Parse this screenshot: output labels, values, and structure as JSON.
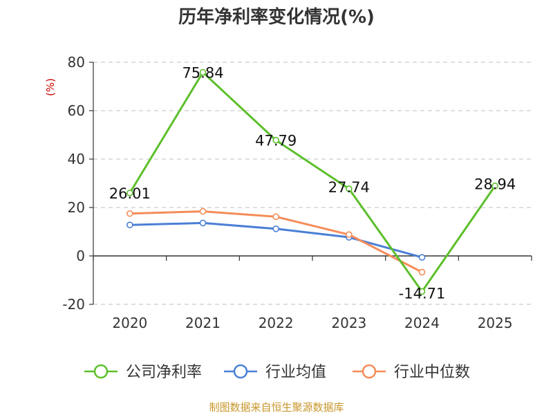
{
  "chart_data": {
    "type": "line",
    "title": "历年净利率变化情况(%)",
    "ylabel": "(%)",
    "xlabel": "",
    "categories": [
      "2020",
      "2021",
      "2022",
      "2023",
      "2024",
      "2025"
    ],
    "ylim": [
      -20,
      80
    ],
    "yticks": [
      80,
      60,
      40,
      20,
      0,
      -20
    ],
    "grid": true,
    "legend": "bottom",
    "series": [
      {
        "name": "公司净利率",
        "color": "#5cbf2a",
        "values": [
          26.01,
          75.84,
          47.79,
          27.74,
          -14.71,
          28.94
        ],
        "labels": [
          "26.01",
          "75.84",
          "47.79",
          "27.74",
          "-14.71",
          "28.94"
        ]
      },
      {
        "name": "行业均值",
        "color": "#4a7fd6",
        "values": [
          12.8,
          13.6,
          11.2,
          7.7,
          -0.6,
          null
        ],
        "labels": []
      },
      {
        "name": "行业中位数",
        "color": "#f58c58",
        "values": [
          17.5,
          18.4,
          16.2,
          8.8,
          -6.7,
          null
        ],
        "labels": []
      }
    ]
  },
  "source": "制图数据来自恒生聚源数据库"
}
